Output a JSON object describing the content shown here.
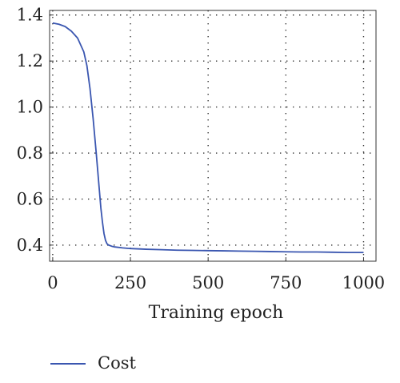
{
  "chart_data": {
    "type": "line",
    "title": "",
    "xlabel": "Training epoch",
    "ylabel": "",
    "xlim": [
      -10,
      1040
    ],
    "ylim": [
      0.33,
      1.42
    ],
    "xticks": [
      0,
      250,
      500,
      750,
      1000
    ],
    "yticks": [
      0.4,
      0.6,
      0.8,
      1.0,
      1.2,
      1.4
    ],
    "xtick_labels": [
      "0",
      "250",
      "500",
      "750",
      "1000"
    ],
    "ytick_labels": [
      "0.4",
      "0.6",
      "0.8",
      "1.0",
      "1.2",
      "1.4"
    ],
    "grid": true,
    "legend_position": "bottom-left",
    "series": [
      {
        "name": "Cost",
        "color": "#3a56b0",
        "x": [
          0,
          20,
          40,
          60,
          80,
          100,
          110,
          120,
          130,
          140,
          145,
          150,
          155,
          160,
          165,
          170,
          175,
          180,
          190,
          200,
          225,
          250,
          300,
          350,
          400,
          450,
          500,
          550,
          600,
          650,
          700,
          750,
          800,
          850,
          900,
          950,
          1000
        ],
        "y": [
          1.365,
          1.36,
          1.35,
          1.33,
          1.3,
          1.24,
          1.18,
          1.08,
          0.95,
          0.8,
          0.72,
          0.64,
          0.56,
          0.5,
          0.45,
          0.42,
          0.405,
          0.4,
          0.395,
          0.392,
          0.388,
          0.385,
          0.382,
          0.38,
          0.378,
          0.377,
          0.376,
          0.375,
          0.374,
          0.373,
          0.372,
          0.371,
          0.37,
          0.37,
          0.369,
          0.368,
          0.368
        ]
      }
    ]
  }
}
